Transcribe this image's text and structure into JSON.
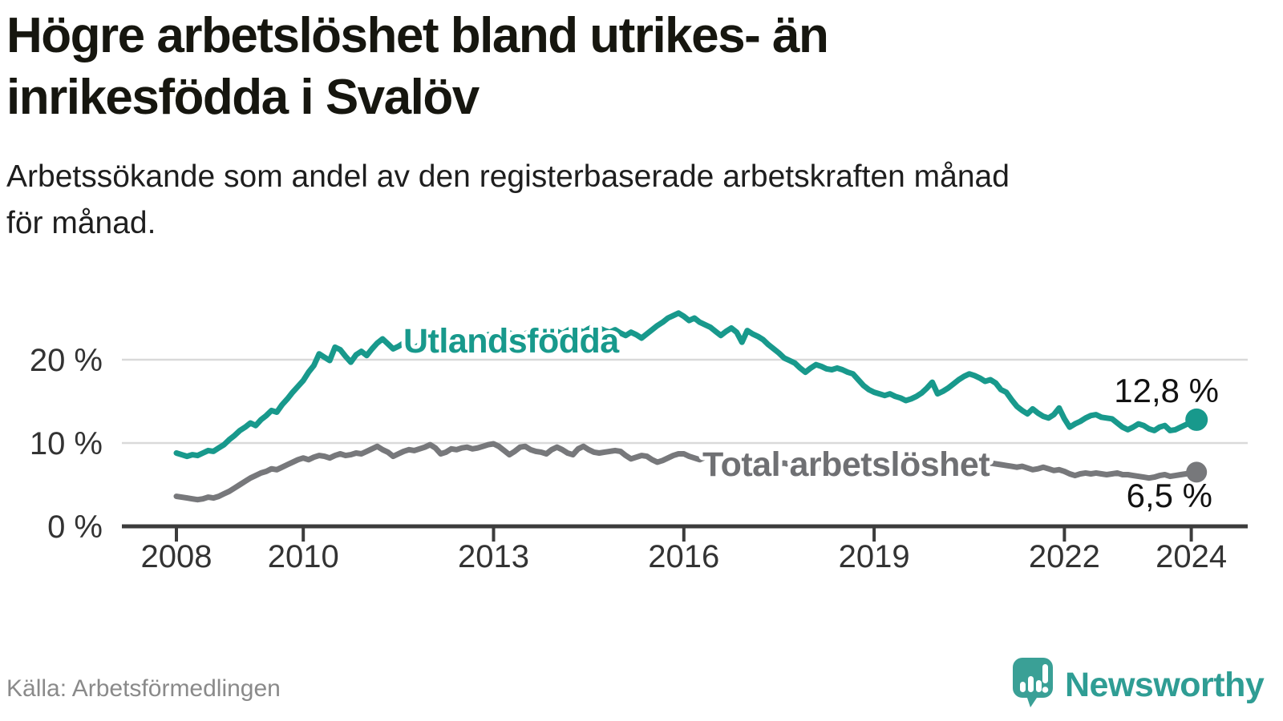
{
  "title": {
    "line1": "Högre arbetslöshet bland utrikes- än",
    "line2": "inrikesfödda i Svalöv"
  },
  "subtitle": {
    "line1": "Arbetssökande som andel av den registerbaserade arbetskraften månad",
    "line2": "för månad."
  },
  "source": {
    "text": "Källa: Arbetsförmedlingen"
  },
  "branding": {
    "logo_text": "Newsworthy"
  },
  "colors": {
    "foreign_born": "#18998c",
    "total": "#77787b",
    "total_label": "#6f7073",
    "grid": "#d9d9d9",
    "axis": "#3c3c3c",
    "value_label": "#121212",
    "brand": "#2f9d94"
  },
  "chart_data": {
    "type": "line",
    "title": "Högre arbetslöshet bland utrikes- än inrikesfödda i Svalöv",
    "subtitle": "Arbetssökande som andel av den registerbaserade arbetskraften månad för månad.",
    "x_unit": "month",
    "x_start": "2008-01",
    "x_end": "2024-02",
    "ylim": [
      0,
      26
    ],
    "grid": "horizontal",
    "yticks": [
      {
        "label": "0 %",
        "value": 0
      },
      {
        "label": "10 %",
        "value": 10
      },
      {
        "label": "20 %",
        "value": 20
      }
    ],
    "xticks": [
      {
        "label": "2008",
        "year": 2008
      },
      {
        "label": "2010",
        "year": 2010
      },
      {
        "label": "2013",
        "year": 2013
      },
      {
        "label": "2016",
        "year": 2016
      },
      {
        "label": "2019",
        "year": 2019
      },
      {
        "label": "2022",
        "year": 2022
      },
      {
        "label": "2024",
        "year": 2024
      }
    ],
    "series": [
      {
        "name": "Utlandsfödda",
        "color": "#18998c",
        "end_label": "12,8 %",
        "end_value": 12.8,
        "values": [
          8.8,
          8.6,
          8.4,
          8.6,
          8.5,
          8.8,
          9.1,
          9.0,
          9.4,
          9.8,
          10.4,
          10.9,
          11.5,
          11.9,
          12.4,
          12.1,
          12.8,
          13.3,
          13.9,
          13.7,
          14.6,
          15.3,
          16.1,
          16.8,
          17.5,
          18.5,
          19.3,
          20.7,
          20.3,
          19.9,
          21.5,
          21.2,
          20.4,
          19.7,
          20.6,
          21.0,
          20.5,
          21.3,
          22.0,
          22.5,
          21.9,
          21.3,
          21.6,
          22.0,
          21.7,
          21.4,
          21.8,
          22.3,
          22.0,
          21.7,
          22.1,
          22.5,
          22.3,
          22.0,
          22.4,
          22.8,
          22.5,
          22.2,
          22.6,
          23.0,
          22.8,
          22.5,
          22.9,
          23.2,
          23.0,
          22.7,
          23.1,
          23.4,
          23.2,
          22.9,
          23.3,
          23.6,
          23.4,
          23.1,
          23.5,
          23.8,
          23.6,
          23.3,
          23.7,
          24.0,
          23.8,
          23.5,
          23.3,
          23.6,
          23.2,
          22.9,
          23.3,
          23.0,
          22.6,
          23.1,
          23.6,
          24.1,
          24.5,
          25.0,
          25.3,
          25.6,
          25.2,
          24.7,
          25.0,
          24.5,
          24.2,
          23.9,
          23.4,
          22.9,
          23.4,
          23.8,
          23.3,
          22.1,
          23.5,
          23.1,
          22.8,
          22.4,
          21.8,
          21.3,
          20.8,
          20.2,
          19.9,
          19.6,
          19.0,
          18.5,
          19.0,
          19.4,
          19.2,
          18.9,
          18.8,
          19.0,
          18.8,
          18.5,
          18.3,
          17.6,
          16.9,
          16.4,
          16.1,
          15.9,
          15.7,
          15.9,
          15.6,
          15.4,
          15.1,
          15.3,
          15.6,
          16.0,
          16.6,
          17.3,
          15.9,
          16.2,
          16.6,
          17.1,
          17.6,
          18.0,
          18.3,
          18.1,
          17.8,
          17.4,
          17.6,
          17.2,
          16.4,
          16.1,
          15.2,
          14.4,
          13.9,
          13.5,
          14.1,
          13.6,
          13.2,
          13.0,
          13.4,
          14.2,
          12.9,
          11.9,
          12.3,
          12.6,
          13.0,
          13.3,
          13.4,
          13.1,
          13.0,
          12.9,
          12.4,
          11.9,
          11.6,
          11.9,
          12.3,
          12.1,
          11.7,
          11.5,
          11.9,
          12.1,
          11.5,
          11.6,
          11.9,
          12.2,
          12.5,
          12.8
        ]
      },
      {
        "name": "Total arbetslöshet",
        "color": "#77787b",
        "end_label": "6,5 %",
        "end_value": 6.5,
        "values": [
          3.6,
          3.5,
          3.4,
          3.3,
          3.2,
          3.3,
          3.5,
          3.4,
          3.6,
          3.9,
          4.2,
          4.6,
          5.0,
          5.4,
          5.8,
          6.1,
          6.4,
          6.6,
          6.9,
          6.8,
          7.1,
          7.4,
          7.7,
          8.0,
          8.2,
          8.0,
          8.3,
          8.5,
          8.4,
          8.2,
          8.5,
          8.7,
          8.5,
          8.6,
          8.8,
          8.7,
          9.0,
          9.3,
          9.6,
          9.2,
          8.9,
          8.4,
          8.7,
          9.0,
          9.2,
          9.1,
          9.3,
          9.5,
          9.8,
          9.4,
          8.7,
          8.9,
          9.3,
          9.2,
          9.4,
          9.5,
          9.3,
          9.4,
          9.6,
          9.8,
          9.9,
          9.6,
          9.1,
          8.6,
          9.0,
          9.5,
          9.6,
          9.2,
          9.0,
          8.9,
          8.7,
          9.2,
          9.5,
          9.2,
          8.8,
          8.6,
          9.3,
          9.6,
          9.2,
          8.9,
          8.8,
          8.9,
          9.0,
          9.1,
          9.0,
          8.5,
          8.1,
          8.3,
          8.5,
          8.4,
          8.0,
          7.7,
          7.9,
          8.2,
          8.5,
          8.7,
          8.7,
          8.4,
          8.2,
          8.0,
          8.3,
          8.5,
          8.4,
          8.2,
          8.0,
          7.9,
          7.8,
          8.0,
          7.9,
          7.8,
          7.7,
          7.6,
          7.5,
          7.4,
          7.5,
          7.6,
          7.4,
          7.2,
          7.1,
          7.0,
          7.1,
          7.2,
          7.0,
          6.9,
          6.8,
          6.9,
          7.0,
          6.8,
          6.7,
          6.6,
          6.5,
          6.6,
          6.7,
          6.6,
          6.5,
          6.6,
          6.5,
          6.4,
          6.3,
          6.4,
          6.5,
          6.6,
          6.8,
          7.0,
          7.2,
          7.1,
          7.3,
          7.6,
          7.8,
          8.0,
          8.1,
          8.0,
          7.9,
          7.7,
          7.6,
          7.5,
          7.4,
          7.3,
          7.2,
          7.1,
          7.2,
          7.0,
          6.8,
          6.9,
          7.1,
          6.9,
          6.7,
          6.8,
          6.6,
          6.3,
          6.1,
          6.3,
          6.4,
          6.3,
          6.4,
          6.3,
          6.2,
          6.3,
          6.4,
          6.2,
          6.2,
          6.1,
          6.0,
          5.9,
          5.8,
          5.9,
          6.1,
          6.2,
          6.0,
          6.1,
          6.2,
          6.3,
          6.4,
          6.5
        ]
      }
    ]
  }
}
